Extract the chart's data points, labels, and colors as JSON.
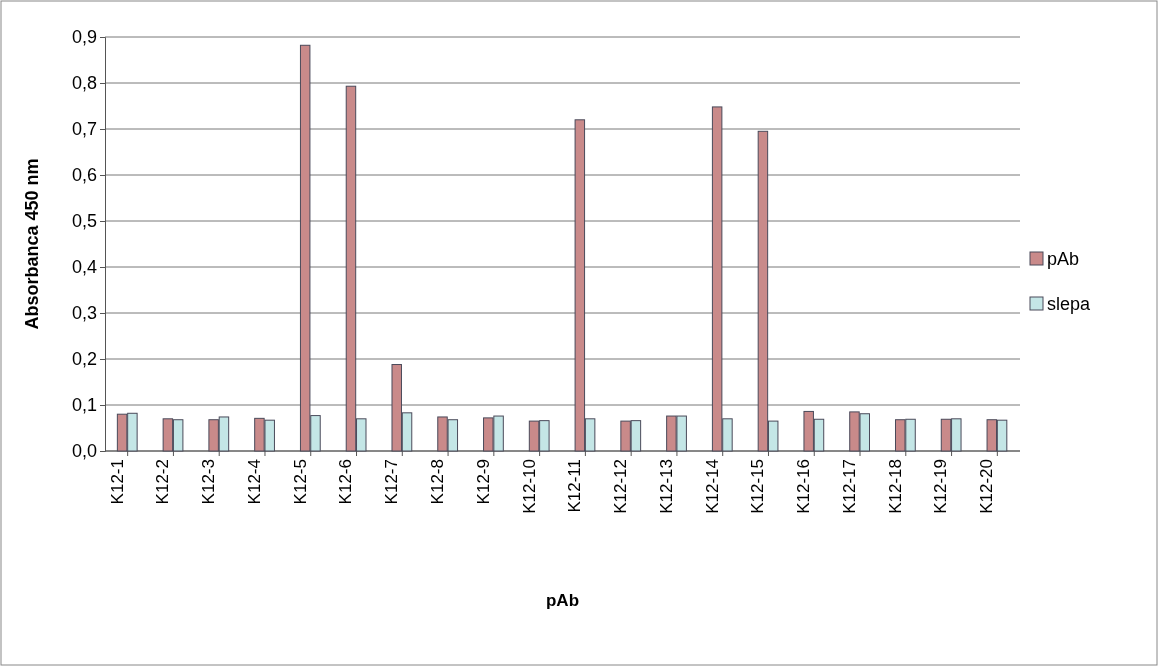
{
  "chart_data": {
    "type": "bar",
    "xlabel": "pAb",
    "ylabel": "Absorbanca 450 nm",
    "categories": [
      "K12-1",
      "K12-2",
      "K12-3",
      "K12-4",
      "K12-5",
      "K12-6",
      "K12-7",
      "K12-8",
      "K12-9",
      "K12-10",
      "K12-11",
      "K12-12",
      "K12-13",
      "K12-14",
      "K12-15",
      "K12-16",
      "K12-17",
      "K12-18",
      "K12-19",
      "K12-20"
    ],
    "series": [
      {
        "name": "pAb",
        "color": "#c98a8a",
        "values": [
          0.08,
          0.07,
          0.068,
          0.071,
          0.882,
          0.793,
          0.188,
          0.074,
          0.072,
          0.065,
          0.72,
          0.065,
          0.076,
          0.748,
          0.695,
          0.086,
          0.085,
          0.068,
          0.069,
          0.068
        ]
      },
      {
        "name": "slepa",
        "color": "#c4e6e6",
        "values": [
          0.082,
          0.068,
          0.074,
          0.067,
          0.077,
          0.07,
          0.083,
          0.068,
          0.076,
          0.066,
          0.07,
          0.066,
          0.076,
          0.07,
          0.065,
          0.069,
          0.081,
          0.069,
          0.07,
          0.067
        ]
      }
    ],
    "ylim": [
      0,
      0.9
    ],
    "yticks": [
      {
        "value": 0,
        "label": "0,0"
      },
      {
        "value": 0.1,
        "label": "0,1"
      },
      {
        "value": 0.2,
        "label": "0,2"
      },
      {
        "value": 0.3,
        "label": "0,3"
      },
      {
        "value": 0.4,
        "label": "0,4"
      },
      {
        "value": 0.5,
        "label": "0,5"
      },
      {
        "value": 0.6,
        "label": "0,6"
      },
      {
        "value": 0.7,
        "label": "0,7"
      },
      {
        "value": 0.8,
        "label": "0,8"
      },
      {
        "value": 0.9,
        "label": "0,9"
      }
    ],
    "grid": "y",
    "legend": "right"
  }
}
